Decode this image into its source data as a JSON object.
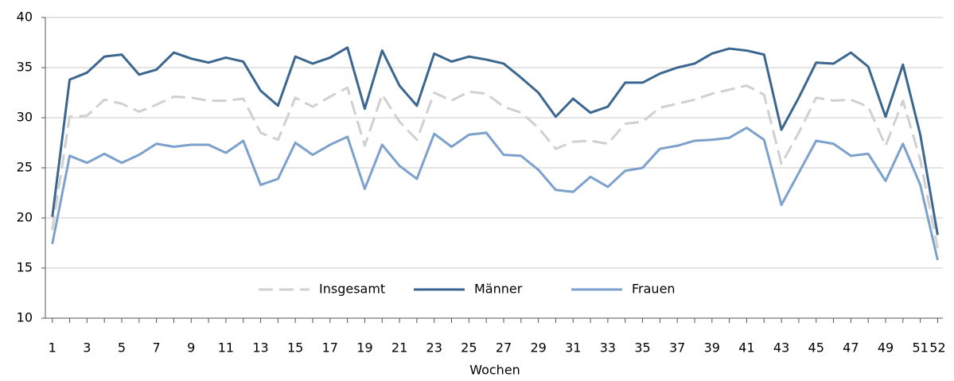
{
  "chart_data": {
    "type": "line",
    "x_label": "Wochen",
    "x": [
      1,
      2,
      3,
      4,
      5,
      6,
      7,
      8,
      9,
      10,
      11,
      12,
      13,
      14,
      15,
      16,
      17,
      18,
      19,
      20,
      21,
      22,
      23,
      24,
      25,
      26,
      27,
      28,
      29,
      30,
      31,
      32,
      33,
      34,
      35,
      36,
      37,
      38,
      39,
      40,
      41,
      42,
      43,
      44,
      45,
      46,
      47,
      48,
      49,
      50,
      51,
      52
    ],
    "xlim": [
      0.6,
      52.3
    ],
    "xticks": [
      1,
      3,
      5,
      7,
      9,
      11,
      13,
      15,
      17,
      19,
      21,
      23,
      25,
      27,
      29,
      31,
      33,
      35,
      37,
      39,
      41,
      43,
      45,
      47,
      49,
      51,
      52
    ],
    "ylim": [
      10,
      40
    ],
    "yticks": [
      10,
      15,
      20,
      25,
      30,
      35,
      40
    ],
    "grid": true,
    "legend": "bottom",
    "series": [
      {
        "name": "Insgesamt",
        "color": "#d0d0d0",
        "line_style": "dashed",
        "values": [
          18.8,
          30.1,
          30.2,
          31.8,
          31.4,
          30.6,
          31.3,
          32.1,
          32.0,
          31.7,
          31.7,
          31.9,
          28.5,
          27.8,
          32.0,
          31.1,
          32.1,
          33.0,
          27.2,
          32.3,
          29.6,
          27.8,
          32.5,
          31.7,
          32.6,
          32.4,
          31.1,
          30.5,
          29.0,
          26.9,
          27.6,
          27.7,
          27.4,
          29.4,
          29.6,
          31.0,
          31.4,
          31.8,
          32.4,
          32.8,
          33.2,
          32.3,
          25.4,
          28.5,
          32.0,
          31.7,
          31.8,
          31.1,
          27.2,
          31.7,
          25.8,
          17.0
        ]
      },
      {
        "name": "Männer",
        "color": "#3b6690",
        "line_style": "solid",
        "values": [
          20.1,
          33.8,
          34.5,
          36.1,
          36.3,
          34.3,
          34.8,
          36.5,
          35.9,
          35.5,
          36.0,
          35.6,
          32.7,
          31.2,
          36.1,
          35.4,
          36.0,
          37.0,
          30.9,
          36.7,
          33.2,
          31.2,
          36.4,
          35.6,
          36.1,
          35.8,
          35.4,
          34.0,
          32.5,
          30.1,
          31.9,
          30.5,
          31.1,
          33.5,
          33.5,
          34.4,
          35.0,
          35.4,
          36.4,
          36.9,
          36.7,
          36.3,
          28.8,
          32.0,
          35.5,
          35.4,
          36.5,
          35.1,
          30.1,
          35.3,
          28.3,
          18.3
        ]
      },
      {
        "name": "Frauen",
        "color": "#7ba1cc",
        "line_style": "solid",
        "values": [
          17.4,
          26.2,
          25.5,
          26.4,
          25.5,
          26.3,
          27.4,
          27.1,
          27.3,
          27.3,
          26.5,
          27.7,
          23.3,
          23.9,
          27.5,
          26.3,
          27.3,
          28.1,
          22.9,
          27.3,
          25.2,
          23.9,
          28.4,
          27.1,
          28.3,
          28.5,
          26.3,
          26.2,
          24.8,
          22.8,
          22.6,
          24.1,
          23.1,
          24.7,
          25.0,
          26.9,
          27.2,
          27.7,
          27.8,
          28.0,
          29.0,
          27.8,
          21.3,
          24.5,
          27.7,
          27.4,
          26.2,
          26.4,
          23.7,
          27.4,
          23.3,
          15.8
        ]
      }
    ]
  }
}
